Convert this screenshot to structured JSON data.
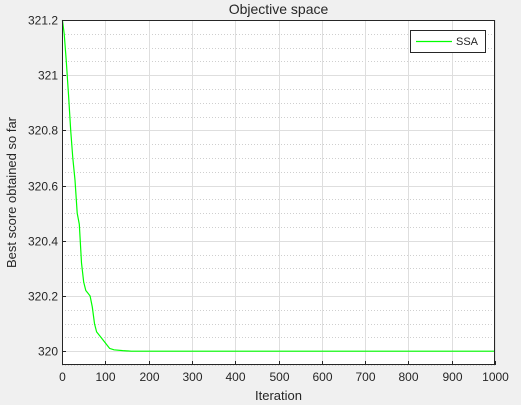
{
  "chart_data": {
    "type": "line",
    "title": "Objective space",
    "xlabel": "Iteration",
    "ylabel": "Best score obtained so far",
    "xlim": [
      0,
      1000
    ],
    "ylim": [
      319.95,
      321.2
    ],
    "xticks": [
      0,
      100,
      200,
      300,
      400,
      500,
      600,
      700,
      800,
      900,
      1000
    ],
    "yticks": [
      320,
      320.2,
      320.4,
      320.6,
      320.8,
      321,
      321.2
    ],
    "grid": true,
    "minor_grid_y": true,
    "legend_position": "top-right",
    "series": [
      {
        "name": "SSA",
        "color": "#00ff00",
        "x": [
          1,
          5,
          10,
          15,
          20,
          25,
          30,
          35,
          40,
          45,
          50,
          55,
          60,
          65,
          70,
          75,
          80,
          90,
          100,
          110,
          120,
          140,
          160,
          180,
          200,
          250,
          300,
          400,
          500,
          600,
          700,
          800,
          900,
          1000
        ],
        "y": [
          321.2,
          321.15,
          321.05,
          320.93,
          320.8,
          320.7,
          320.62,
          320.5,
          320.46,
          320.32,
          320.25,
          320.22,
          320.21,
          320.2,
          320.16,
          320.1,
          320.07,
          320.05,
          320.03,
          320.01,
          320.005,
          320.002,
          320.0,
          320.0,
          320.0,
          320.0,
          320.0,
          320.0,
          320.0,
          320.0,
          320.0,
          320.0,
          320.0,
          320.0
        ]
      }
    ]
  }
}
